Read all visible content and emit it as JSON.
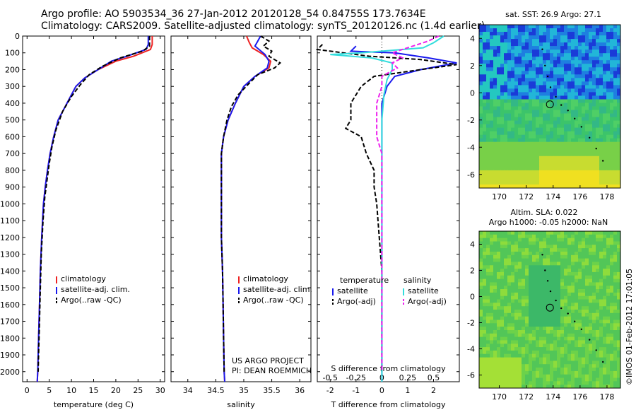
{
  "header": {
    "line1": "Argo profile: AO 5903534_36 27-Jan-2012 20120128_54 0.84755S 173.7634E",
    "line2": "Climatology: CARS2009. Satellite-adjusted climatology: synTS_20120126.nc (1.4d earlier)"
  },
  "stamp": "©IMOS 01-Feb-2012 17:01:05",
  "colors": {
    "climatology": "#ee2222",
    "satellite": "#1a1aee",
    "argo": "#000000",
    "sat_salinity": "#33dddd",
    "argo_salinity": "#ee22ee"
  },
  "chart_data": [
    {
      "type": "line",
      "panel": "temperature",
      "xlabel": "temperature (deg C)",
      "xlim": [
        -1,
        31
      ],
      "xticks": [
        0,
        5,
        10,
        15,
        20,
        25,
        30
      ],
      "xtick_labels": [
        "0",
        "5",
        "10",
        "15",
        "20",
        "25",
        "30"
      ],
      "ylim": [
        0,
        2060
      ],
      "yticks": [
        0,
        100,
        200,
        300,
        400,
        500,
        600,
        700,
        800,
        900,
        1000,
        1100,
        1200,
        1300,
        1400,
        1500,
        1600,
        1700,
        1800,
        1900,
        2000
      ],
      "ytick_labels": [
        "0",
        "100",
        "200",
        "300",
        "400",
        "500",
        "600",
        "700",
        "800",
        "900",
        "1000",
        "1100",
        "1200",
        "1300",
        "1400",
        "1500",
        "1600",
        "1700",
        "1800",
        "1900",
        "2000"
      ],
      "legend": [
        "climatology",
        "satellite-adj. clim.",
        "Argo(..raw -QC)"
      ],
      "series": [
        {
          "name": "climatology",
          "points": [
            [
              28.2,
              0
            ],
            [
              28.2,
              50
            ],
            [
              27.8,
              80
            ],
            [
              24,
              120
            ],
            [
              20,
              150
            ],
            [
              16,
              200
            ],
            [
              13,
              250
            ],
            [
              11,
              300
            ],
            [
              9,
              400
            ],
            [
              7,
              500
            ],
            [
              6,
              600
            ],
            [
              5.2,
              700
            ],
            [
              4.6,
              800
            ],
            [
              4.1,
              900
            ],
            [
              3.7,
              1000
            ],
            [
              3.3,
              1200
            ],
            [
              3,
              1400
            ],
            [
              2.8,
              1600
            ],
            [
              2.6,
              1800
            ],
            [
              2.4,
              2000
            ],
            [
              2.3,
              2060
            ]
          ]
        },
        {
          "name": "satellite",
          "points": [
            [
              27.3,
              0
            ],
            [
              27.3,
              50
            ],
            [
              26.8,
              80
            ],
            [
              22.5,
              120
            ],
            [
              19,
              150
            ],
            [
              16,
              200
            ],
            [
              13,
              250
            ],
            [
              11,
              300
            ],
            [
              9,
              400
            ],
            [
              7,
              500
            ],
            [
              6,
              600
            ],
            [
              5.2,
              700
            ],
            [
              4.6,
              800
            ],
            [
              4.1,
              900
            ],
            [
              3.7,
              1000
            ],
            [
              3.3,
              1200
            ],
            [
              3,
              1400
            ],
            [
              2.8,
              1600
            ],
            [
              2.6,
              1800
            ],
            [
              2.4,
              2000
            ],
            [
              2.3,
              2060
            ]
          ]
        },
        {
          "name": "argo",
          "points": [
            [
              27.6,
              0
            ],
            [
              27.6,
              60
            ],
            [
              26,
              90
            ],
            [
              21,
              130
            ],
            [
              17,
              180
            ],
            [
              14,
              230
            ],
            [
              12,
              290
            ],
            [
              10,
              360
            ],
            [
              8,
              450
            ],
            [
              6.5,
              560
            ],
            [
              5.6,
              660
            ],
            [
              5,
              760
            ],
            [
              4.5,
              860
            ],
            [
              4,
              960
            ],
            [
              3.6,
              1100
            ],
            [
              3.2,
              1300
            ],
            [
              3,
              1500
            ],
            [
              2.8,
              1700
            ],
            [
              2.6,
              1900
            ],
            [
              2.5,
              2000
            ]
          ]
        }
      ]
    },
    {
      "type": "line",
      "panel": "salinity",
      "xlabel": "salinity",
      "xlim": [
        33.7,
        36.2
      ],
      "xticks": [
        34,
        34.5,
        35,
        35.5,
        36
      ],
      "xtick_labels": [
        "34",
        "34.5",
        "35",
        "35.5",
        "36"
      ],
      "ylim": [
        0,
        2060
      ],
      "legend": [
        "climatology",
        "satellite-adj. clim.",
        "Argo(..raw -QC)"
      ],
      "annotation": [
        "US ARGO PROJECT",
        "PI: DEAN ROEMMICH"
      ],
      "series": [
        {
          "name": "climatology",
          "points": [
            [
              35.05,
              0
            ],
            [
              35.1,
              40
            ],
            [
              35.15,
              70
            ],
            [
              35.35,
              110
            ],
            [
              35.48,
              150
            ],
            [
              35.45,
              190
            ],
            [
              35.2,
              240
            ],
            [
              35.0,
              300
            ],
            [
              34.85,
              400
            ],
            [
              34.72,
              500
            ],
            [
              34.64,
              600
            ],
            [
              34.6,
              700
            ],
            [
              34.6,
              800
            ],
            [
              34.6,
              1000
            ],
            [
              34.6,
              1200
            ],
            [
              34.62,
              1400
            ],
            [
              34.63,
              1600
            ],
            [
              34.64,
              1800
            ],
            [
              34.65,
              2000
            ],
            [
              34.66,
              2060
            ]
          ]
        },
        {
          "name": "satellite",
          "points": [
            [
              35.3,
              0
            ],
            [
              35.25,
              30
            ],
            [
              35.2,
              60
            ],
            [
              35.38,
              110
            ],
            [
              35.45,
              150
            ],
            [
              35.42,
              190
            ],
            [
              35.2,
              240
            ],
            [
              35.0,
              300
            ],
            [
              34.85,
              400
            ],
            [
              34.72,
              500
            ],
            [
              34.64,
              600
            ],
            [
              34.6,
              700
            ],
            [
              34.6,
              800
            ],
            [
              34.6,
              1000
            ],
            [
              34.6,
              1200
            ],
            [
              34.62,
              1400
            ],
            [
              34.63,
              1600
            ],
            [
              34.64,
              1800
            ],
            [
              34.65,
              2000
            ],
            [
              34.66,
              2060
            ]
          ]
        },
        {
          "name": "argo",
          "points": [
            [
              35.3,
              0
            ],
            [
              35.45,
              30
            ],
            [
              35.35,
              60
            ],
            [
              35.5,
              90
            ],
            [
              35.45,
              120
            ],
            [
              35.65,
              160
            ],
            [
              35.55,
              190
            ],
            [
              35.25,
              230
            ],
            [
              35.1,
              280
            ],
            [
              34.9,
              350
            ],
            [
              34.78,
              420
            ],
            [
              34.7,
              500
            ],
            [
              34.64,
              600
            ],
            [
              34.6,
              700
            ],
            [
              34.6,
              800
            ],
            [
              34.6,
              1000
            ],
            [
              34.6,
              1200
            ],
            [
              34.62,
              1400
            ],
            [
              34.63,
              1600
            ],
            [
              34.64,
              1800
            ],
            [
              34.65,
              2000
            ]
          ]
        }
      ]
    },
    {
      "type": "line",
      "panel": "difference",
      "xlabel_bottom": "T difference from climatology",
      "xlabel_top": "S difference from climatology",
      "xlim": [
        -2.5,
        3
      ],
      "xticks": [
        -2,
        -1,
        0,
        1,
        2
      ],
      "xtick_labels": [
        "-2",
        "-1",
        "0",
        "1",
        "2"
      ],
      "s_xticks": [
        -0.5,
        -0.25,
        0,
        0.25,
        0.5
      ],
      "s_xtick_labels": [
        "-0.5",
        "-0.25",
        "0",
        "0.25",
        "0.5"
      ],
      "ylim": [
        0,
        2060
      ],
      "legend_headers": [
        "temperature",
        "salinity"
      ],
      "legend": [
        "satellite",
        "Argo(-adj)",
        "satellite",
        "Argo(-adj)"
      ],
      "series": [
        {
          "name": "T satellite",
          "points": [
            [
              -1,
              60
            ],
            [
              -1.2,
              90
            ],
            [
              0.5,
              100
            ],
            [
              1.8,
              130
            ],
            [
              2.9,
              160
            ],
            [
              1.5,
              200
            ],
            [
              0.5,
              240
            ],
            [
              0.2,
              300
            ],
            [
              0,
              400
            ],
            [
              0,
              500
            ],
            [
              0,
              700
            ],
            [
              0,
              1000
            ],
            [
              0,
              1500
            ],
            [
              0,
              2060
            ]
          ]
        },
        {
          "name": "T Argo(-adj)",
          "points": [
            [
              -2.3,
              50
            ],
            [
              -2.5,
              80
            ],
            [
              -1.5,
              100
            ],
            [
              -0.5,
              120
            ],
            [
              1.5,
              140
            ],
            [
              2.9,
              170
            ],
            [
              1.5,
              200
            ],
            [
              -0.3,
              240
            ],
            [
              -0.8,
              300
            ],
            [
              -1,
              350
            ],
            [
              -1.2,
              400
            ],
            [
              -1.2,
              500
            ],
            [
              -1.4,
              550
            ],
            [
              -0.8,
              600
            ],
            [
              -0.6,
              700
            ],
            [
              -0.3,
              800
            ],
            [
              -0.3,
              900
            ],
            [
              -0.2,
              1000
            ],
            [
              -0.1,
              1200
            ],
            [
              0,
              1400
            ],
            [
              0,
              1700
            ],
            [
              0,
              2000
            ]
          ]
        },
        {
          "name": "S satellite",
          "points": [
            [
              0.6,
              0
            ],
            [
              0.5,
              40
            ],
            [
              0.4,
              70
            ],
            [
              -0.2,
              100
            ],
            [
              -0.5,
              110
            ],
            [
              -0.1,
              130
            ],
            [
              0.1,
              160
            ],
            [
              0.1,
              200
            ],
            [
              0.05,
              260
            ],
            [
              0.02,
              350
            ],
            [
              0,
              500
            ],
            [
              0,
              700
            ],
            [
              0,
              1000
            ],
            [
              0,
              1400
            ],
            [
              0,
              2060
            ]
          ]
        },
        {
          "name": "S Argo(-adj)",
          "points": [
            [
              0.55,
              0
            ],
            [
              0.45,
              30
            ],
            [
              0.3,
              60
            ],
            [
              0.1,
              100
            ],
            [
              0.2,
              130
            ],
            [
              0.1,
              160
            ],
            [
              0.15,
              190
            ],
            [
              0,
              240
            ],
            [
              0,
              300
            ],
            [
              -0.05,
              400
            ],
            [
              -0.05,
              500
            ],
            [
              -0.05,
              600
            ],
            [
              0,
              700
            ],
            [
              0,
              1000
            ],
            [
              0,
              2000
            ]
          ]
        }
      ]
    },
    {
      "type": "heatmap",
      "panel": "sst_map",
      "title": "sat. SST: 26.9 Argo: 27.1",
      "xlim": [
        168.5,
        179
      ],
      "ylim": [
        -7,
        5
      ],
      "xticks": [
        170,
        172,
        174,
        176,
        178
      ],
      "xtick_labels": [
        "170",
        "172",
        "174",
        "176",
        "178"
      ],
      "yticks": [
        -6,
        -4,
        -2,
        0,
        2,
        4
      ],
      "ytick_labels": [
        "-6",
        "-4",
        "-2",
        "0",
        "2",
        "4"
      ],
      "profile_marker": [
        173.76,
        -0.85
      ]
    },
    {
      "type": "heatmap",
      "panel": "sla_map",
      "title_line1": "Altim. SLA: 0.022",
      "title_line2": "Argo h1000: -0.05 h2000: NaN",
      "xlim": [
        168.5,
        179
      ],
      "ylim": [
        -7,
        5
      ],
      "xticks": [
        170,
        172,
        174,
        176,
        178
      ],
      "xtick_labels": [
        "170",
        "172",
        "174",
        "176",
        "178"
      ],
      "yticks": [
        -6,
        -4,
        -2,
        0,
        2,
        4
      ],
      "ytick_labels": [
        "-6",
        "-4",
        "-2",
        "0",
        "2",
        "4"
      ],
      "profile_marker": [
        173.76,
        -0.85
      ]
    }
  ]
}
